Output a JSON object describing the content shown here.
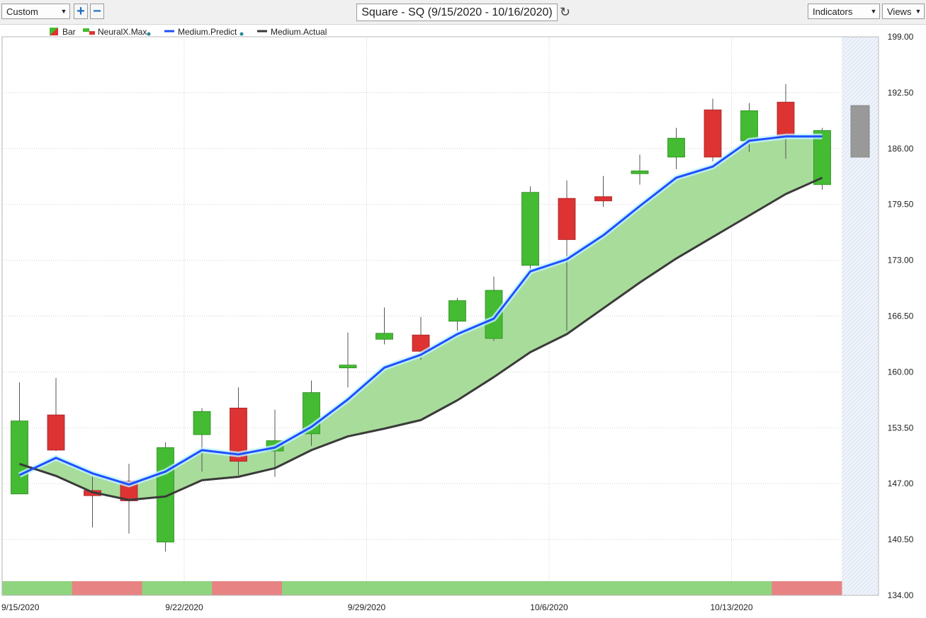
{
  "toolbar": {
    "range_select": "Custom",
    "zoom_in_icon": "plus-icon",
    "zoom_out_icon": "minus-icon",
    "chart_title": "Square - SQ (9/15/2020 - 10/16/2020)",
    "refresh_icon": "refresh-icon",
    "indicators_label": "Indicators",
    "views_label": "Views"
  },
  "legend": [
    {
      "label": "Bar",
      "icon": "bar-swatch"
    },
    {
      "label": "NeuralX.Max",
      "icon": "candle-swatch"
    },
    {
      "label": "Medium.Predict",
      "color": "#1f4fff"
    },
    {
      "label": "Medium.Actual",
      "color": "#3a3a3a"
    }
  ],
  "colors": {
    "up": "#44bb33",
    "down": "#dd3333",
    "predict_line": "#1f4fff",
    "actual_line": "#3a3a3a",
    "band_fill": "#a8dc9a",
    "forecast_bar": "#999999"
  },
  "chart_data": {
    "type": "candlestick",
    "title": "Square - SQ (9/15/2020 - 10/16/2020)",
    "ylim": [
      134,
      199
    ],
    "yticks": [
      "199.00",
      "192.50",
      "186.00",
      "179.50",
      "173.00",
      "166.50",
      "160.00",
      "153.50",
      "147.00",
      "140.50",
      "134.00"
    ],
    "xtick_labels": [
      "9/15/2020",
      "9/22/2020",
      "9/29/2020",
      "10/6/2020",
      "10/13/2020"
    ],
    "grid": true,
    "legend_position": "top-left",
    "candles": [
      {
        "date": "9/15",
        "open": 145.8,
        "high": 158.8,
        "low": 145.8,
        "close": 154.3
      },
      {
        "date": "9/16",
        "open": 155.0,
        "high": 159.3,
        "low": 150.8,
        "close": 150.9
      },
      {
        "date": "9/17",
        "open": 146.2,
        "high": 147.8,
        "low": 141.9,
        "close": 145.6
      },
      {
        "date": "9/18",
        "open": 147.3,
        "high": 149.3,
        "low": 141.2,
        "close": 145.0
      },
      {
        "date": "9/21",
        "open": 140.2,
        "high": 151.8,
        "low": 139.1,
        "close": 151.2
      },
      {
        "date": "9/22",
        "open": 152.7,
        "high": 155.8,
        "low": 148.4,
        "close": 155.4
      },
      {
        "date": "9/23",
        "open": 155.8,
        "high": 158.2,
        "low": 148.0,
        "close": 149.6
      },
      {
        "date": "9/24",
        "open": 150.8,
        "high": 155.6,
        "low": 147.8,
        "close": 152.0
      },
      {
        "date": "9/25",
        "open": 152.8,
        "high": 159.0,
        "low": 151.4,
        "close": 157.6
      },
      {
        "date": "9/28",
        "open": 160.6,
        "high": 164.6,
        "low": 158.2,
        "close": 160.8
      },
      {
        "date": "9/29",
        "open": 163.8,
        "high": 167.5,
        "low": 163.2,
        "close": 164.5
      },
      {
        "date": "9/30",
        "open": 164.3,
        "high": 166.4,
        "low": 161.4,
        "close": 162.4
      },
      {
        "date": "10/1",
        "open": 165.9,
        "high": 168.6,
        "low": 164.8,
        "close": 168.3
      },
      {
        "date": "10/2",
        "open": 163.9,
        "high": 171.1,
        "low": 163.6,
        "close": 169.5
      },
      {
        "date": "10/5",
        "open": 172.4,
        "high": 181.6,
        "low": 171.6,
        "close": 180.9
      },
      {
        "date": "10/6",
        "open": 180.2,
        "high": 182.3,
        "low": 164.8,
        "close": 175.4
      },
      {
        "date": "10/7",
        "open": 180.4,
        "high": 182.8,
        "low": 179.2,
        "close": 179.9
      },
      {
        "date": "10/8",
        "open": 183.1,
        "high": 185.3,
        "low": 181.8,
        "close": 183.4
      },
      {
        "date": "10/9",
        "open": 185.0,
        "high": 188.4,
        "low": 183.6,
        "close": 187.2
      },
      {
        "date": "10/12",
        "open": 190.5,
        "high": 191.8,
        "low": 184.5,
        "close": 185.0
      },
      {
        "date": "10/13",
        "open": 186.9,
        "high": 191.3,
        "low": 185.6,
        "close": 190.4
      },
      {
        "date": "10/14",
        "open": 191.4,
        "high": 193.5,
        "low": 184.8,
        "close": 187.4
      },
      {
        "date": "10/15",
        "open": 181.8,
        "high": 188.4,
        "low": 181.2,
        "close": 188.1
      }
    ],
    "forecast_bar": {
      "high": 191.0,
      "low": 185.0
    },
    "series": [
      {
        "name": "Medium.Predict",
        "values": [
          148.0,
          150.0,
          148.2,
          146.9,
          148.4,
          150.9,
          150.4,
          151.2,
          153.6,
          156.8,
          160.5,
          162.0,
          164.4,
          166.2,
          171.7,
          173.1,
          175.9,
          179.3,
          182.6,
          183.9,
          186.9,
          187.4,
          187.4
        ]
      },
      {
        "name": "Medium.Actual",
        "values": [
          149.3,
          147.9,
          146.0,
          145.1,
          145.5,
          147.4,
          147.8,
          148.8,
          150.9,
          152.5,
          153.4,
          154.4,
          156.7,
          159.4,
          162.3,
          164.4,
          167.4,
          170.4,
          173.2,
          175.7,
          178.2,
          180.7,
          182.6
        ]
      }
    ],
    "signal_strip": [
      "up",
      "down",
      "up",
      "down",
      "up",
      "up",
      "up",
      "up",
      "up",
      "up",
      "up",
      "down"
    ]
  }
}
